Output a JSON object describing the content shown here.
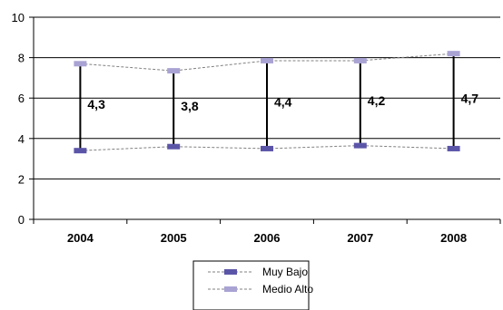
{
  "chart_data": {
    "type": "line",
    "title": "",
    "xlabel": "",
    "ylabel": "",
    "categories": [
      "2004",
      "2005",
      "2006",
      "2007",
      "2008"
    ],
    "ylim": [
      0,
      10
    ],
    "yticks": [
      "0",
      "2",
      "4",
      "6",
      "8",
      "10"
    ],
    "grid": true,
    "legend_position": "bottom",
    "series": [
      {
        "name": "Muy Bajo",
        "values": [
          3.4,
          3.6,
          3.5,
          3.65,
          3.5
        ],
        "color": "#5b55a8",
        "line_color": "#808080"
      },
      {
        "name": "Medio Alto",
        "values": [
          7.7,
          7.35,
          7.85,
          7.85,
          8.2
        ],
        "color": "#a9a3d4",
        "line_color": "#808080"
      }
    ],
    "gap_labels": [
      "4,3",
      "3,8",
      "4,4",
      "4,2",
      "4,7"
    ]
  }
}
